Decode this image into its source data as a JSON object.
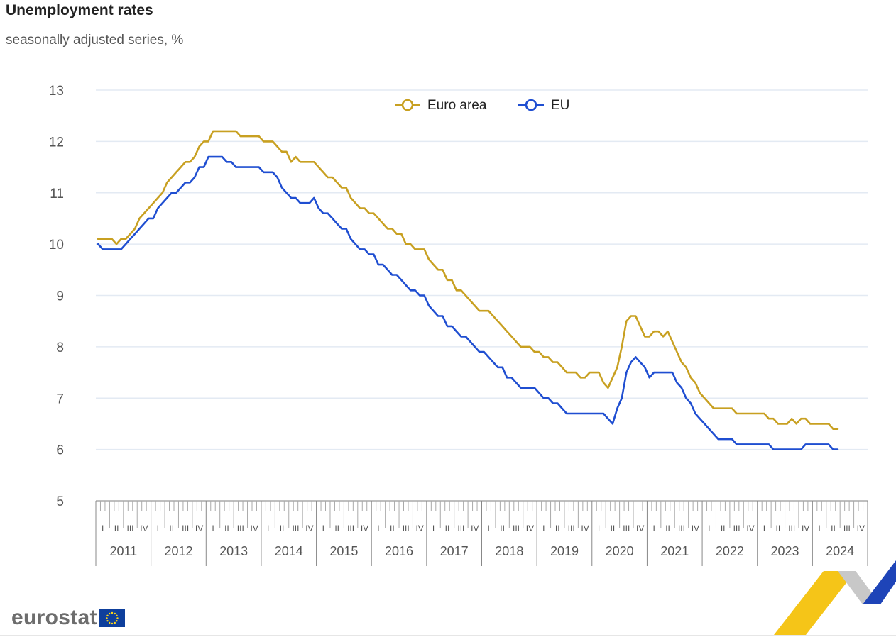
{
  "header": {
    "title": "Unemployment rates",
    "subtitle": "seasonally adjusted series, %"
  },
  "logo": {
    "text": "eurostat",
    "icon": "eu-flag-icon"
  },
  "colors": {
    "euro_area": "#c8a021",
    "eu": "#1f4ed1",
    "grid": "#e3eaf3",
    "axis": "#555555"
  },
  "chart_data": {
    "type": "line",
    "title": "Unemployment rates",
    "subtitle": "seasonally adjusted series, %",
    "xlabel": "",
    "ylabel": "",
    "ylim": [
      5,
      13
    ],
    "yticks": [
      "5",
      "6",
      "7",
      "8",
      "9",
      "10",
      "11",
      "12",
      "13"
    ],
    "years": [
      "2011",
      "2012",
      "2013",
      "2014",
      "2015",
      "2016",
      "2017",
      "2018",
      "2019",
      "2020",
      "2021",
      "2022",
      "2023",
      "2024"
    ],
    "quarters": [
      "I",
      "II",
      "III",
      "IV"
    ],
    "x_start": "2011-01",
    "x_end": "2024-12",
    "frequency": "monthly",
    "legend": [
      "Euro area",
      "EU"
    ],
    "legend_position": "top-center",
    "series": [
      {
        "name": "Euro area",
        "start": "2011-01",
        "values": [
          10.1,
          10.1,
          10.1,
          10.1,
          10.0,
          10.1,
          10.1,
          10.2,
          10.3,
          10.5,
          10.6,
          10.7,
          10.8,
          10.9,
          11.0,
          11.2,
          11.3,
          11.4,
          11.5,
          11.6,
          11.6,
          11.7,
          11.9,
          12.0,
          12.0,
          12.2,
          12.2,
          12.2,
          12.2,
          12.2,
          12.2,
          12.1,
          12.1,
          12.1,
          12.1,
          12.1,
          12.0,
          12.0,
          12.0,
          11.9,
          11.8,
          11.8,
          11.6,
          11.7,
          11.6,
          11.6,
          11.6,
          11.6,
          11.5,
          11.4,
          11.3,
          11.3,
          11.2,
          11.1,
          11.1,
          10.9,
          10.8,
          10.7,
          10.7,
          10.6,
          10.6,
          10.5,
          10.4,
          10.3,
          10.3,
          10.2,
          10.2,
          10.0,
          10.0,
          9.9,
          9.9,
          9.9,
          9.7,
          9.6,
          9.5,
          9.5,
          9.3,
          9.3,
          9.1,
          9.1,
          9.0,
          8.9,
          8.8,
          8.7,
          8.7,
          8.7,
          8.6,
          8.5,
          8.4,
          8.3,
          8.2,
          8.1,
          8.0,
          8.0,
          8.0,
          7.9,
          7.9,
          7.8,
          7.8,
          7.7,
          7.7,
          7.6,
          7.5,
          7.5,
          7.5,
          7.4,
          7.4,
          7.5,
          7.5,
          7.5,
          7.3,
          7.2,
          7.4,
          7.6,
          8.0,
          8.5,
          8.6,
          8.6,
          8.4,
          8.2,
          8.2,
          8.3,
          8.3,
          8.2,
          8.3,
          8.1,
          7.9,
          7.7,
          7.6,
          7.4,
          7.3,
          7.1,
          7.0,
          6.9,
          6.8,
          6.8,
          6.8,
          6.8,
          6.8,
          6.7,
          6.7,
          6.7,
          6.7,
          6.7,
          6.7,
          6.7,
          6.6,
          6.6,
          6.5,
          6.5,
          6.5,
          6.6,
          6.5,
          6.6,
          6.6,
          6.5,
          6.5,
          6.5,
          6.5,
          6.5,
          6.4,
          6.4
        ]
      },
      {
        "name": "EU",
        "start": "2011-01",
        "values": [
          10.0,
          9.9,
          9.9,
          9.9,
          9.9,
          9.9,
          10.0,
          10.1,
          10.2,
          10.3,
          10.4,
          10.5,
          10.5,
          10.7,
          10.8,
          10.9,
          11.0,
          11.0,
          11.1,
          11.2,
          11.2,
          11.3,
          11.5,
          11.5,
          11.7,
          11.7,
          11.7,
          11.7,
          11.6,
          11.6,
          11.5,
          11.5,
          11.5,
          11.5,
          11.5,
          11.5,
          11.4,
          11.4,
          11.4,
          11.3,
          11.1,
          11.0,
          10.9,
          10.9,
          10.8,
          10.8,
          10.8,
          10.9,
          10.7,
          10.6,
          10.6,
          10.5,
          10.4,
          10.3,
          10.3,
          10.1,
          10.0,
          9.9,
          9.9,
          9.8,
          9.8,
          9.6,
          9.6,
          9.5,
          9.4,
          9.4,
          9.3,
          9.2,
          9.1,
          9.1,
          9.0,
          9.0,
          8.8,
          8.7,
          8.6,
          8.6,
          8.4,
          8.4,
          8.3,
          8.2,
          8.2,
          8.1,
          8.0,
          7.9,
          7.9,
          7.8,
          7.7,
          7.6,
          7.6,
          7.4,
          7.4,
          7.3,
          7.2,
          7.2,
          7.2,
          7.2,
          7.1,
          7.0,
          7.0,
          6.9,
          6.9,
          6.8,
          6.7,
          6.7,
          6.7,
          6.7,
          6.7,
          6.7,
          6.7,
          6.7,
          6.7,
          6.6,
          6.5,
          6.8,
          7.0,
          7.5,
          7.7,
          7.8,
          7.7,
          7.6,
          7.4,
          7.5,
          7.5,
          7.5,
          7.5,
          7.5,
          7.3,
          7.2,
          7.0,
          6.9,
          6.7,
          6.6,
          6.5,
          6.4,
          6.3,
          6.2,
          6.2,
          6.2,
          6.2,
          6.1,
          6.1,
          6.1,
          6.1,
          6.1,
          6.1,
          6.1,
          6.1,
          6.0,
          6.0,
          6.0,
          6.0,
          6.0,
          6.0,
          6.0,
          6.1,
          6.1,
          6.1,
          6.1,
          6.1,
          6.1,
          6.0,
          6.0
        ]
      }
    ]
  }
}
